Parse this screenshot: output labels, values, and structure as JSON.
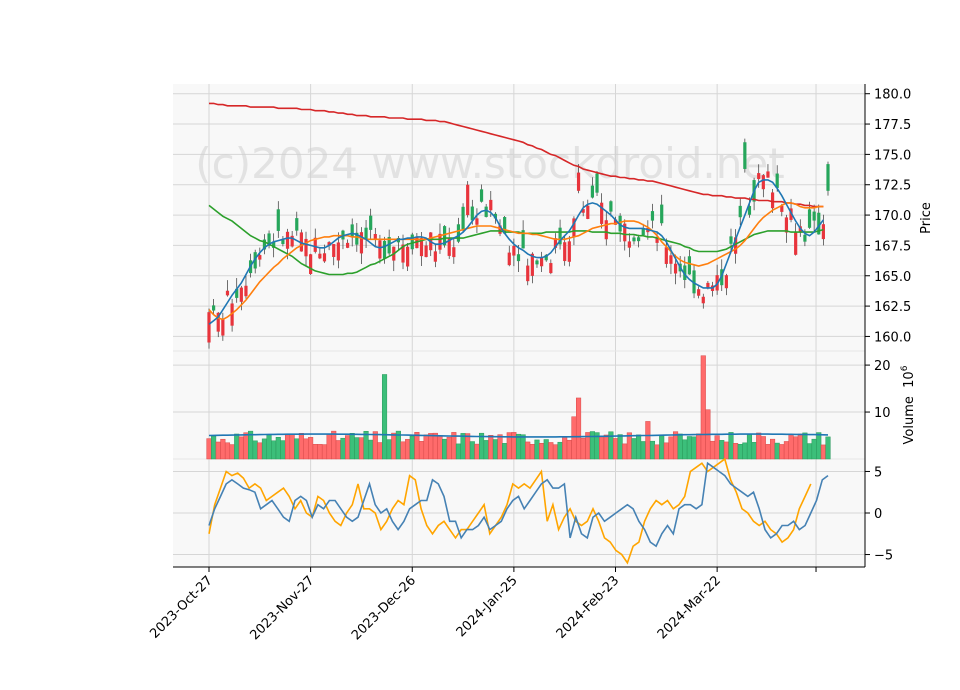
{
  "chart_data": {
    "type": "candlestick",
    "watermark": "(c)2024 www.stockdroid.net",
    "x_tick_labels": [
      "2023-Oct-27",
      "2023-Nov-27",
      "2023-Dec-26",
      "2024-Jan-25",
      "2024-Feb-23",
      "2024-Mar-22"
    ],
    "price_panel": {
      "ylabel": "Price",
      "ylim": [
        158.8,
        180.8
      ],
      "yticks": [
        "160.0",
        "162.5",
        "165.0",
        "167.5",
        "170.0",
        "172.5",
        "175.0",
        "177.5",
        "180.0"
      ],
      "up_color": "#26a65b",
      "down_color": "#e8343c",
      "ma_short": {
        "color": "#1f77b4",
        "values": [
          161.0,
          161.3,
          161.6,
          162.2,
          162.8,
          163.4,
          163.9,
          164.4,
          165.1,
          165.8,
          166.4,
          166.9,
          167.3,
          167.6,
          167.8,
          167.9,
          168.0,
          168.1,
          168.1,
          167.9,
          167.7,
          167.6,
          167.5,
          167.4,
          167.3,
          167.3,
          167.5,
          167.8,
          168.1,
          168.3,
          168.4,
          168.5,
          168.4,
          168.2,
          168.0,
          167.7,
          167.4,
          167.3,
          167.4,
          167.6,
          167.8,
          168.0,
          168.0,
          168.1,
          168.1,
          168.2,
          168.2,
          168.1,
          167.8,
          167.6,
          167.6,
          167.7,
          167.9,
          168.1,
          168.3,
          168.6,
          169.0,
          169.5,
          170.0,
          170.3,
          170.4,
          170.2,
          169.8,
          169.1,
          168.5,
          168.0,
          167.6,
          167.3,
          167.1,
          166.8,
          166.6,
          166.5,
          166.5,
          166.6,
          166.9,
          167.4,
          167.9,
          168.3,
          168.7,
          169.3,
          170.0,
          170.6,
          170.9,
          171.0,
          170.9,
          170.6,
          170.3,
          170.0,
          169.6,
          169.2,
          169.0,
          168.9,
          168.9,
          168.9,
          168.9,
          168.8,
          168.7,
          168.6,
          168.3,
          167.8,
          167.1,
          166.4,
          165.7,
          165.1,
          164.7,
          164.4,
          164.2,
          164.0,
          164.0,
          164.0,
          164.3,
          165.0,
          166.0,
          167.0,
          168.0,
          169.0,
          170.0,
          171.0,
          172.0,
          172.7,
          172.9,
          172.9,
          172.7,
          172.2,
          171.6,
          170.9,
          170.2,
          169.5,
          168.9,
          168.5,
          168.3,
          168.6,
          169.1,
          169.6
        ]
      },
      "ma_mid": {
        "color": "#ff7f0e",
        "values": [
          162.2,
          161.8,
          161.5,
          161.4,
          161.6,
          161.9,
          162.2,
          162.6,
          163.0,
          163.5,
          164.0,
          164.5,
          164.9,
          165.3,
          165.7,
          166.0,
          166.4,
          166.7,
          167.0,
          167.3,
          167.5,
          167.7,
          167.9,
          168.0,
          168.1,
          168.2,
          168.2,
          168.3,
          168.3,
          168.3,
          168.3,
          168.2,
          168.2,
          168.1,
          168.0,
          168.0,
          168.0,
          168.0,
          168.0,
          168.0,
          168.0,
          168.0,
          168.0,
          168.0,
          168.0,
          168.0,
          168.0,
          168.0,
          168.1,
          168.2,
          168.3,
          168.4,
          168.5,
          168.6,
          168.7,
          168.8,
          168.9,
          169.0,
          169.1,
          169.1,
          169.1,
          169.1,
          169.0,
          168.9,
          168.8,
          168.7,
          168.6,
          168.5,
          168.5,
          168.5,
          168.4,
          168.4,
          168.3,
          168.2,
          168.1,
          168.0,
          168.0,
          168.0,
          168.1,
          168.2,
          168.3,
          168.5,
          168.7,
          168.9,
          169.0,
          169.1,
          169.2,
          169.3,
          169.3,
          169.4,
          169.5,
          169.5,
          169.5,
          169.4,
          169.2,
          169.0,
          168.7,
          168.3,
          167.8,
          167.4,
          167.0,
          166.6,
          166.3,
          166.1,
          166.0,
          165.9,
          165.8,
          165.9,
          166.0,
          166.2,
          166.4,
          166.6,
          166.8,
          167.0,
          167.2,
          167.5,
          167.9,
          168.4,
          168.9,
          169.4,
          169.8,
          170.1,
          170.4,
          170.6,
          170.8,
          171.0,
          171.0,
          170.9,
          170.7,
          170.6,
          170.6,
          170.6,
          170.7,
          170.7
        ]
      },
      "ma_long": {
        "color": "#2ca02c",
        "values": [
          170.8,
          170.5,
          170.2,
          169.9,
          169.7,
          169.5,
          169.2,
          168.9,
          168.6,
          168.3,
          168.1,
          167.9,
          167.8,
          167.6,
          167.4,
          167.2,
          167.0,
          166.8,
          166.6,
          166.3,
          166.0,
          165.8,
          165.6,
          165.4,
          165.3,
          165.2,
          165.1,
          165.1,
          165.1,
          165.1,
          165.2,
          165.2,
          165.3,
          165.5,
          165.7,
          165.9,
          166.0,
          166.2,
          166.4,
          166.6,
          166.8,
          167.1,
          167.4,
          167.6,
          167.7,
          167.8,
          167.9,
          168.0,
          168.0,
          168.0,
          168.0,
          168.1,
          168.1,
          168.1,
          168.1,
          168.1,
          168.2,
          168.3,
          168.4,
          168.5,
          168.6,
          168.7,
          168.7,
          168.7,
          168.6,
          168.6,
          168.6,
          168.6,
          168.5,
          168.5,
          168.5,
          168.5,
          168.5,
          168.6,
          168.6,
          168.6,
          168.6,
          168.6,
          168.6,
          168.7,
          168.7,
          168.7,
          168.7,
          168.6,
          168.6,
          168.6,
          168.6,
          168.5,
          168.5,
          168.5,
          168.4,
          168.4,
          168.4,
          168.3,
          168.3,
          168.2,
          168.2,
          168.1,
          168.0,
          167.9,
          167.8,
          167.7,
          167.6,
          167.4,
          167.3,
          167.1,
          167.0,
          167.0,
          167.0,
          167.0,
          167.0,
          167.1,
          167.2,
          167.4,
          167.6,
          167.8,
          168.0,
          168.2,
          168.4,
          168.5,
          168.6,
          168.7,
          168.7,
          168.7,
          168.7,
          168.7,
          168.6,
          168.6,
          168.6,
          168.6,
          168.6,
          168.6,
          168.7,
          168.8
        ]
      },
      "ma_very_long": {
        "color": "#d62728",
        "values": [
          179.2,
          179.2,
          179.1,
          179.1,
          179.0,
          179.0,
          179.0,
          179.0,
          179.0,
          178.9,
          178.9,
          178.9,
          178.9,
          178.9,
          178.9,
          178.8,
          178.8,
          178.8,
          178.8,
          178.8,
          178.7,
          178.7,
          178.7,
          178.6,
          178.6,
          178.6,
          178.5,
          178.5,
          178.4,
          178.4,
          178.3,
          178.3,
          178.2,
          178.2,
          178.2,
          178.1,
          178.1,
          178.1,
          178.1,
          178.0,
          178.0,
          178.0,
          178.0,
          177.9,
          177.9,
          177.9,
          177.9,
          177.8,
          177.8,
          177.8,
          177.7,
          177.7,
          177.6,
          177.5,
          177.4,
          177.3,
          177.2,
          177.1,
          177.0,
          176.9,
          176.8,
          176.7,
          176.6,
          176.5,
          176.4,
          176.3,
          176.2,
          176.1,
          176.0,
          175.8,
          175.7,
          175.5,
          175.4,
          175.2,
          175.0,
          174.9,
          174.7,
          174.5,
          174.3,
          174.1,
          174.0,
          173.8,
          173.7,
          173.6,
          173.5,
          173.4,
          173.3,
          173.2,
          173.2,
          173.1,
          173.1,
          173.0,
          173.0,
          172.9,
          172.9,
          172.8,
          172.8,
          172.7,
          172.6,
          172.5,
          172.4,
          172.3,
          172.2,
          172.1,
          172.0,
          171.9,
          171.8,
          171.7,
          171.7,
          171.6,
          171.6,
          171.6,
          171.5,
          171.5,
          171.4,
          171.4,
          171.4,
          171.3,
          171.3,
          171.2,
          171.2,
          171.2,
          171.1,
          171.1,
          171.1,
          171.0,
          171.0,
          170.9,
          170.9,
          170.8,
          170.8,
          170.7,
          170.7,
          170.7
        ]
      }
    },
    "volume_panel": {
      "ylabel": "Volume  $10^6$",
      "ylim": [
        0,
        23
      ],
      "yticks": [
        "10",
        "20"
      ],
      "avg_line_color": "#1f77b4"
    },
    "oscillator_panel": {
      "ylim": [
        -6.5,
        6.5
      ],
      "yticks": [
        "5",
        "0",
        "−5"
      ],
      "line_a": {
        "color": "#4682b4",
        "values": [
          -1.5,
          0.5,
          2.0,
          3.5,
          4.0,
          3.5,
          3.0,
          2.8,
          2.5,
          0.5,
          1.0,
          1.5,
          0.5,
          -0.5,
          -1.0,
          1.5,
          2.0,
          1.5,
          -0.5,
          1.0,
          0.5,
          1.5,
          1.5,
          0.5,
          -0.5,
          -1.0,
          -0.5,
          1.5,
          3.5,
          1.0,
          0.0,
          0.5,
          -1.0,
          -2.0,
          -1.0,
          0.5,
          1.0,
          1.5,
          1.5,
          4.0,
          3.5,
          2.0,
          -1.0,
          -1.0,
          -3.0,
          -2.0,
          -2.0,
          -1.5,
          -0.5,
          -2.0,
          -1.5,
          -1.0,
          0.5,
          1.5,
          2.0,
          0.5,
          1.5,
          2.5,
          3.5,
          4.0,
          3.0,
          3.0,
          3.5,
          -3.0,
          -0.5,
          -2.5,
          -3.0,
          -0.5,
          0.0,
          -1.0,
          -0.5,
          0.0,
          0.5,
          1.0,
          0.5,
          -1.0,
          -2.0,
          -3.5,
          -4.0,
          -2.5,
          -1.5,
          -2.5,
          0.5,
          1.0,
          1.0,
          0.5,
          1.0,
          6.0,
          5.5,
          5.0,
          4.5,
          3.5,
          3.0,
          2.5,
          2.0,
          2.5,
          0.5,
          -2.0,
          -3.0,
          -2.5,
          -1.5,
          -1.5,
          -1.0,
          -2.0,
          -1.5,
          0.0,
          1.5,
          4.0,
          4.5
        ]
      },
      "line_b": {
        "color": "#ffa500",
        "values": [
          -2.5,
          1.0,
          3.0,
          5.0,
          4.5,
          4.8,
          4.2,
          3.0,
          3.5,
          3.0,
          1.5,
          2.0,
          2.5,
          3.0,
          2.0,
          0.5,
          1.5,
          0.0,
          -0.5,
          2.0,
          1.5,
          0.0,
          -1.0,
          -1.5,
          0.0,
          1.0,
          3.5,
          0.5,
          0.5,
          0.0,
          -2.0,
          -1.0,
          0.5,
          1.5,
          1.0,
          4.5,
          4.0,
          0.5,
          -1.5,
          -2.5,
          -1.5,
          -1.0,
          -2.0,
          -3.0,
          -2.0,
          -2.0,
          -1.0,
          0.0,
          1.0,
          -2.5,
          -1.5,
          -0.5,
          1.0,
          3.5,
          3.0,
          3.5,
          3.0,
          4.0,
          5.0,
          -1.0,
          1.0,
          -2.0,
          -0.5,
          0.5,
          -1.0,
          -1.5,
          -1.0,
          0.5,
          -1.0,
          -3.0,
          -3.5,
          -4.5,
          -5.0,
          -6.0,
          -4.0,
          -3.5,
          -1.0,
          0.5,
          1.5,
          1.0,
          1.5,
          0.5,
          1.0,
          2.0,
          5.0,
          5.5,
          6.0,
          5.0,
          5.5,
          6.0,
          6.5,
          4.0,
          2.5,
          0.5,
          0.0,
          -1.0,
          -1.5,
          -1.0,
          -2.0,
          -2.5,
          -3.5,
          -3.0,
          -2.0,
          0.5,
          2.0,
          3.5
        ]
      }
    }
  }
}
